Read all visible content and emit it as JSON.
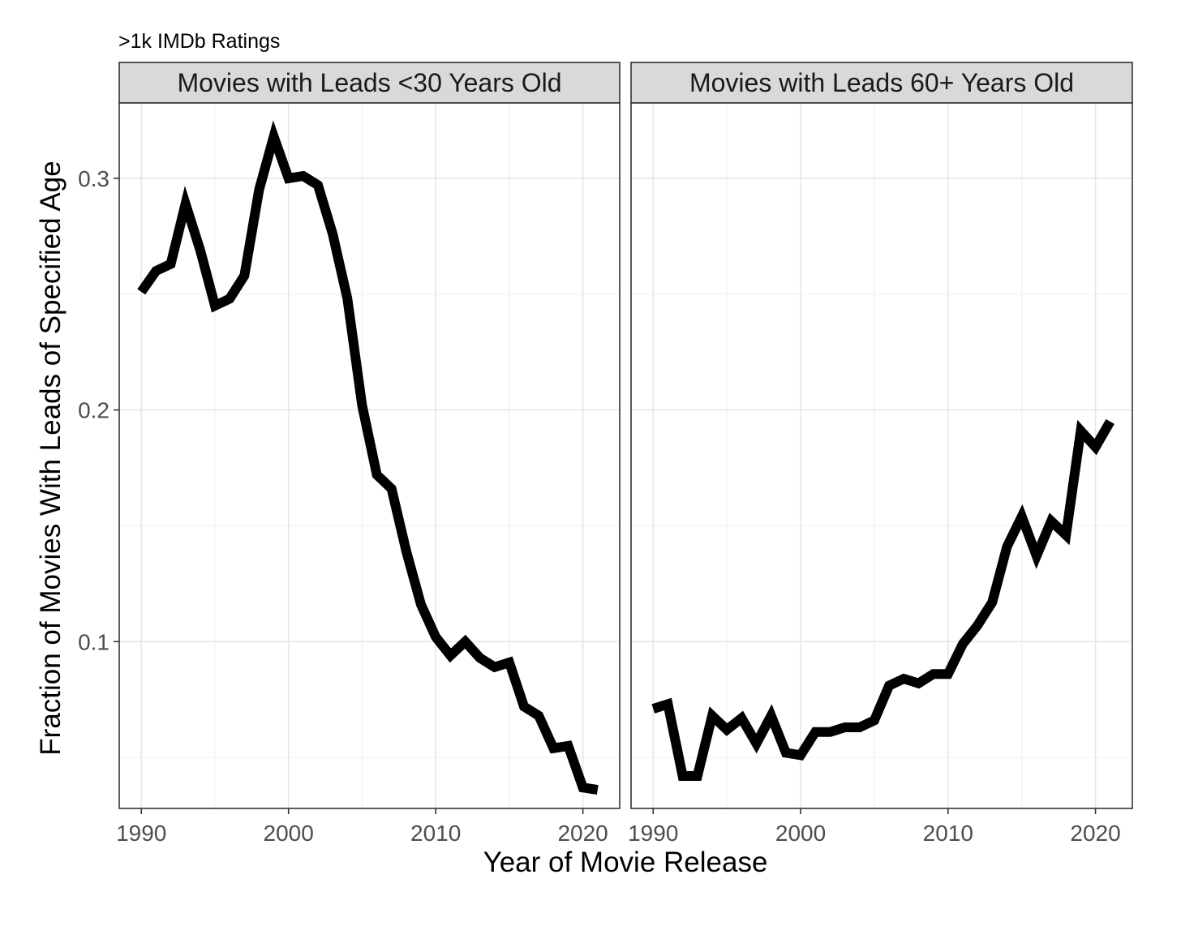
{
  "chart_data": {
    "type": "line",
    "subtitle": ">1k IMDb Ratings",
    "xlabel": "Year of Movie Release",
    "ylabel": "Fraction of Movies With Leads of Specified Age",
    "xlim": [
      1988.5,
      2022.5
    ],
    "ylim": [
      0.028,
      0.3325
    ],
    "x_ticks": [
      1990,
      2000,
      2010,
      2020
    ],
    "y_ticks": [
      0.1,
      0.2,
      0.3
    ],
    "y_tick_labels": [
      "0.1",
      "0.2",
      "0.3"
    ],
    "grid": true,
    "line_color": "#000000",
    "panels": [
      {
        "title": "Movies with Leads <30 Years Old",
        "x": [
          1990,
          1991,
          1992,
          1993,
          1994,
          1995,
          1996,
          1997,
          1998,
          1999,
          2000,
          2001,
          2002,
          2003,
          2004,
          2005,
          2006,
          2007,
          2008,
          2009,
          2010,
          2011,
          2012,
          2013,
          2014,
          2015,
          2016,
          2017,
          2018,
          2019,
          2020,
          2021
        ],
        "y": [
          0.251,
          0.26,
          0.263,
          0.289,
          0.269,
          0.245,
          0.248,
          0.258,
          0.295,
          0.318,
          0.3,
          0.301,
          0.297,
          0.276,
          0.248,
          0.202,
          0.172,
          0.166,
          0.139,
          0.116,
          0.102,
          0.094,
          0.1,
          0.093,
          0.089,
          0.091,
          0.072,
          0.068,
          0.054,
          0.055,
          0.037,
          0.036
        ]
      },
      {
        "title": "Movies with Leads 60+ Years Old",
        "x": [
          1990,
          1991,
          1992,
          1993,
          1994,
          1995,
          1996,
          1997,
          1998,
          1999,
          2000,
          2001,
          2002,
          2003,
          2004,
          2005,
          2006,
          2007,
          2008,
          2009,
          2010,
          2011,
          2012,
          2013,
          2014,
          2015,
          2016,
          2017,
          2018,
          2019,
          2020,
          2021
        ],
        "y": [
          0.071,
          0.073,
          0.042,
          0.042,
          0.068,
          0.062,
          0.067,
          0.056,
          0.068,
          0.052,
          0.051,
          0.061,
          0.061,
          0.063,
          0.063,
          0.066,
          0.081,
          0.084,
          0.082,
          0.086,
          0.086,
          0.099,
          0.107,
          0.117,
          0.141,
          0.154,
          0.137,
          0.152,
          0.146,
          0.191,
          0.184,
          0.195
        ]
      }
    ]
  }
}
